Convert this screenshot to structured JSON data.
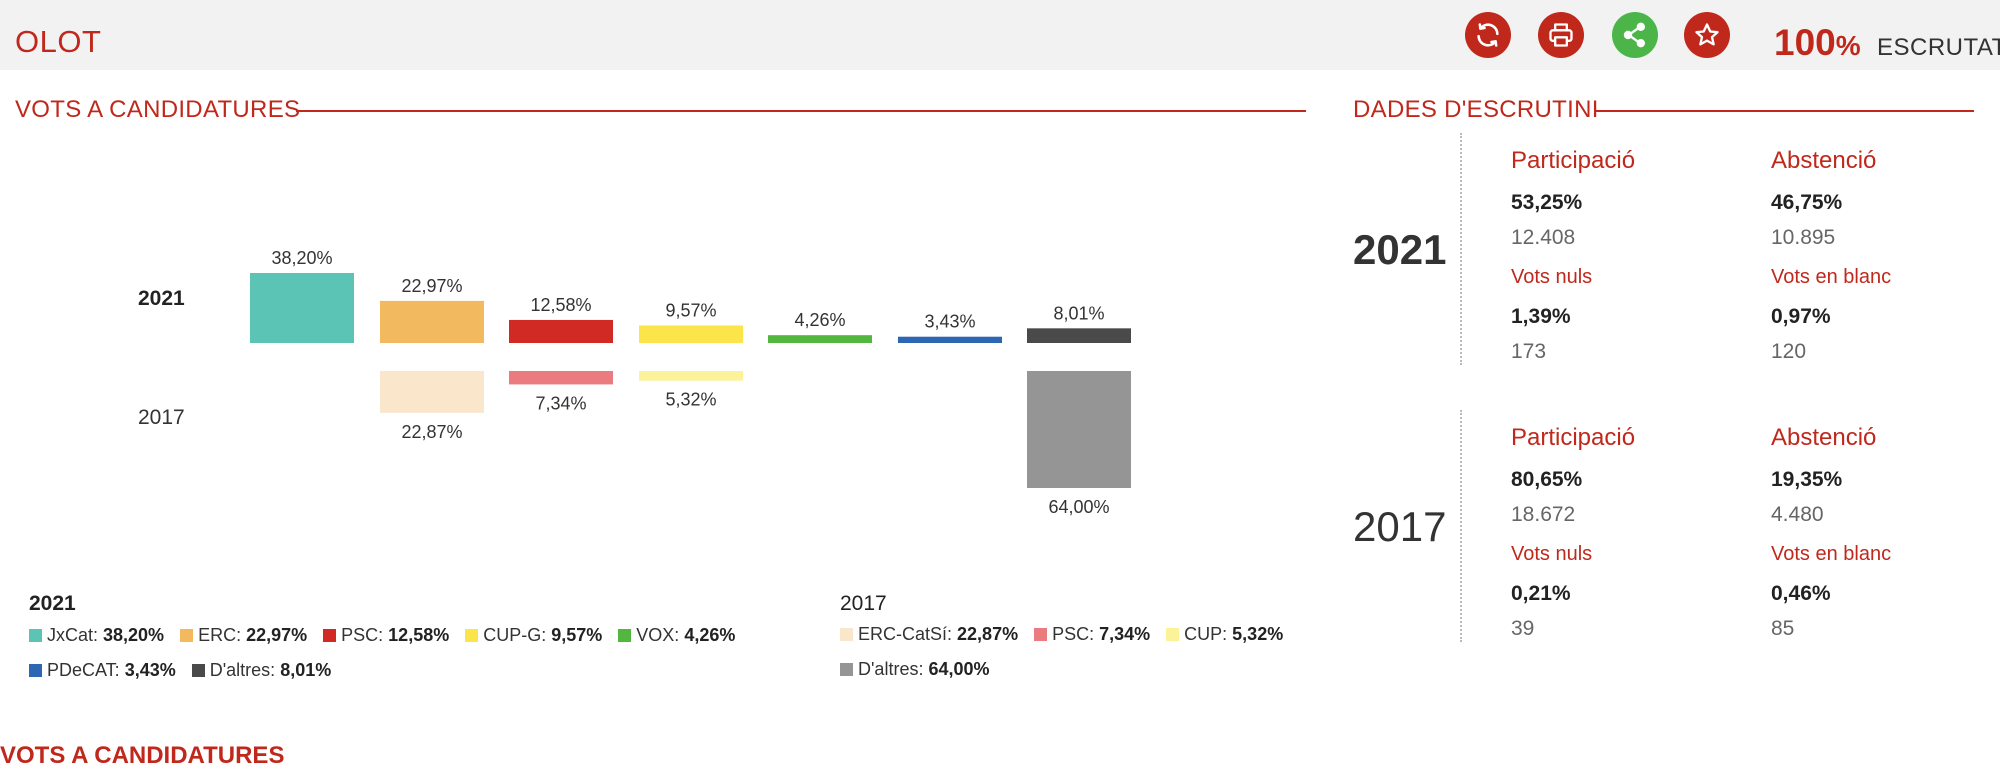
{
  "header": {
    "city": "OLOT",
    "percent": "100",
    "percent_sign": "%",
    "escrutat": "ESCRUTAT",
    "icons": [
      "refresh-icon",
      "print-icon",
      "share-icon",
      "star-icon"
    ],
    "accent": "#c0281c",
    "share_color": "#4cb54a"
  },
  "sections": {
    "votes_title": "VOTS A CANDIDATURES",
    "scrutiny_title": "DADES D'ESCRUTINI",
    "bottom_title": "VOTS A CANDIDATURES"
  },
  "chart_data": {
    "type": "bar",
    "title": "",
    "years": [
      "2021",
      "2017"
    ],
    "ylim": [
      0,
      64
    ],
    "series": [
      {
        "name": "2021",
        "bars": [
          {
            "party": "JxCat",
            "value": 38.2,
            "label": "38,20%",
            "color": "#5bc4b5"
          },
          {
            "party": "ERC",
            "value": 22.97,
            "label": "22,97%",
            "color": "#f2b95e"
          },
          {
            "party": "PSC",
            "value": 12.58,
            "label": "12,58%",
            "color": "#d12a25"
          },
          {
            "party": "CUP-G",
            "value": 9.57,
            "label": "9,57%",
            "color": "#fbe54a"
          },
          {
            "party": "VOX",
            "value": 4.26,
            "label": "4,26%",
            "color": "#52b73f"
          },
          {
            "party": "PDeCAT",
            "value": 3.43,
            "label": "3,43%",
            "color": "#2d66b3"
          },
          {
            "party": "D'altres",
            "value": 8.01,
            "label": "8,01%",
            "color": "#4a4a4a"
          }
        ]
      },
      {
        "name": "2017",
        "bars": [
          {
            "party": "ERC-CatSí",
            "value": 22.87,
            "label": "22,87%",
            "color": "#f9e6cb",
            "column": 1
          },
          {
            "party": "PSC",
            "value": 7.34,
            "label": "7,34%",
            "color": "#ea7c7f",
            "column": 2
          },
          {
            "party": "CUP",
            "value": 5.32,
            "label": "5,32%",
            "color": "#fbf29a",
            "column": 3
          },
          {
            "party": "D'altres",
            "value": 64.0,
            "label": "64,00%",
            "color": "#959595",
            "column": 6
          }
        ]
      }
    ]
  },
  "legend": {
    "year_2021": "2021",
    "row1_2021": [
      {
        "name": "JxCat:",
        "value": "38,20%",
        "color": "#5bc4b5"
      },
      {
        "name": "ERC:",
        "value": "22,97%",
        "color": "#f2b95e"
      },
      {
        "name": "PSC:",
        "value": "12,58%",
        "color": "#d12a25"
      },
      {
        "name": "CUP-G:",
        "value": "9,57%",
        "color": "#fbe54a"
      },
      {
        "name": "VOX:",
        "value": "4,26%",
        "color": "#52b73f"
      }
    ],
    "row2_2021": [
      {
        "name": "PDeCAT:",
        "value": "3,43%",
        "color": "#2d66b3"
      },
      {
        "name": "D'altres:",
        "value": "8,01%",
        "color": "#4a4a4a"
      }
    ],
    "year_2017": "2017",
    "row1_2017": [
      {
        "name": "ERC-CatSí:",
        "value": "22,87%",
        "color": "#f9e6cb"
      },
      {
        "name": "PSC:",
        "value": "7,34%",
        "color": "#ea7c7f"
      },
      {
        "name": "CUP:",
        "value": "5,32%",
        "color": "#fbf29a"
      }
    ],
    "row2_2017": [
      {
        "name": "D'altres:",
        "value": "64,00%",
        "color": "#959595"
      }
    ]
  },
  "scrutiny": [
    {
      "year": "2021",
      "participacio_label": "Participació",
      "participacio_pct": "53,25%",
      "participacio_num": "12.408",
      "abstencio_label": "Abstenció",
      "abstencio_pct": "46,75%",
      "abstencio_num": "10.895",
      "nuls_label": "Vots nuls",
      "nuls_pct": "1,39%",
      "nuls_num": "173",
      "blanc_label": "Vots en blanc",
      "blanc_pct": "0,97%",
      "blanc_num": "120"
    },
    {
      "year": "2017",
      "participacio_label": "Participació",
      "participacio_pct": "80,65%",
      "participacio_num": "18.672",
      "abstencio_label": "Abstenció",
      "abstencio_pct": "19,35%",
      "abstencio_num": "4.480",
      "nuls_label": "Vots nuls",
      "nuls_pct": "0,21%",
      "nuls_num": "39",
      "blanc_label": "Vots en blanc",
      "blanc_pct": "0,46%",
      "blanc_num": "85"
    }
  ]
}
